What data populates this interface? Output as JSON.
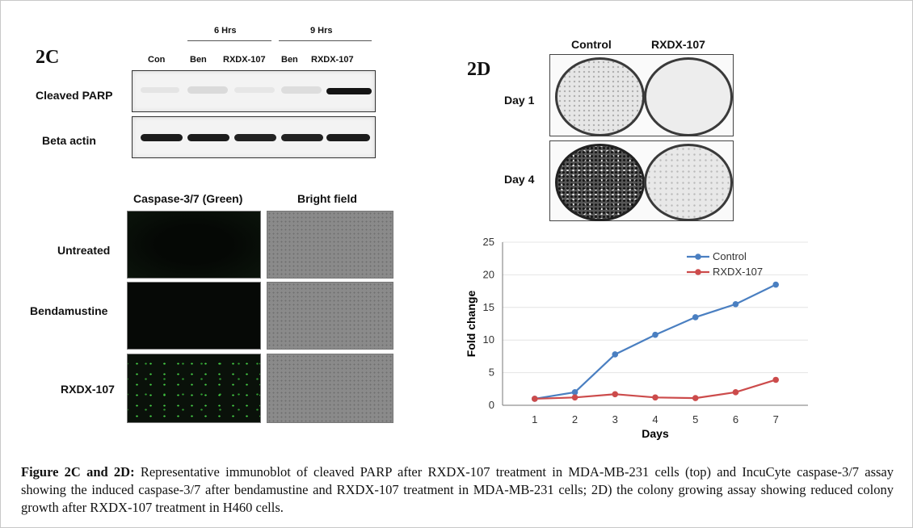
{
  "panel_2c": {
    "letter": "2C",
    "time_groups": [
      "6 Hrs",
      "9 Hrs"
    ],
    "lanes": [
      "Con",
      "Ben",
      "RXDX-107",
      "Ben",
      "RXDX-107"
    ],
    "rows": [
      "Cleaved PARP",
      "Beta actin"
    ],
    "imaging": {
      "columns": [
        "Caspase-3/7 (Green)",
        "Bright field"
      ],
      "rows": [
        "Untreated",
        "Bendamustine",
        "RXDX-107"
      ]
    }
  },
  "panel_2d": {
    "letter": "2D",
    "columns": [
      "Control",
      "RXDX-107"
    ],
    "rows": [
      "Day 1",
      "Day 4"
    ]
  },
  "chart_data": {
    "type": "line",
    "title": "",
    "xlabel": "Days",
    "ylabel": "Fold change",
    "x": [
      1,
      2,
      3,
      4,
      5,
      6,
      7
    ],
    "xlim": [
      0.2,
      7.8
    ],
    "ylim": [
      0,
      25
    ],
    "yticks": [
      0,
      5,
      10,
      15,
      20,
      25
    ],
    "legend_position": "top-right",
    "series": [
      {
        "name": "Control",
        "color": "#4a7fc1",
        "values": [
          1,
          2,
          7.8,
          10.8,
          13.5,
          15.5,
          18.5
        ]
      },
      {
        "name": "RXDX-107",
        "color": "#cc4b4b",
        "values": [
          1,
          1.2,
          1.7,
          1.2,
          1.1,
          2,
          3.9
        ]
      }
    ]
  },
  "caption": {
    "label": "Figure 2C and 2D:",
    "text": "Representative immunoblot of cleaved PARP after RXDX-107 treatment in MDA-MB-231 cells (top) and IncuCyte caspase-3/7 assay showing the induced caspase-3/7 after bendamustine and RXDX-107 treatment in MDA-MB-231 cells; 2D) the colony growing assay showing reduced colony growth after RXDX-107 treatment in H460 cells."
  }
}
